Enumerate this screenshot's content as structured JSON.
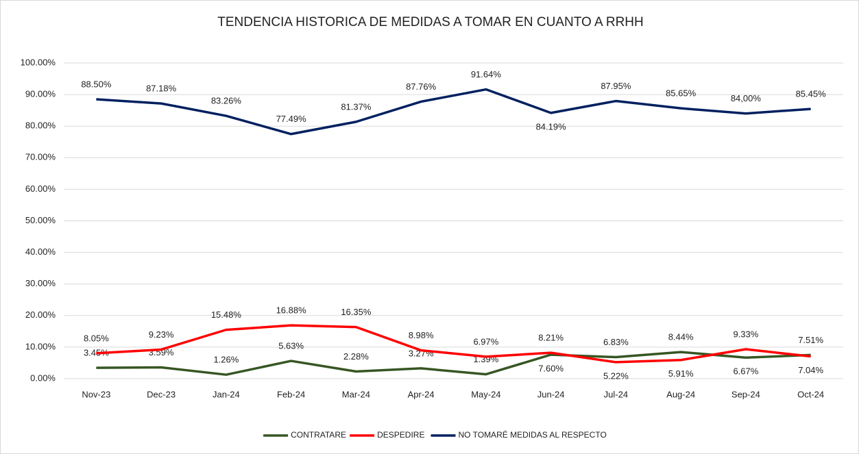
{
  "chart_data": {
    "type": "line",
    "title": "TENDENCIA HISTORICA DE MEDIDAS A TOMAR EN CUANTO A RRHH",
    "categories": [
      "Nov-23",
      "Dec-23",
      "Jan-24",
      "Feb-24",
      "Mar-24",
      "Apr-24",
      "May-24",
      "Jun-24",
      "Jul-24",
      "Aug-24",
      "Sep-24",
      "Oct-24"
    ],
    "series": [
      {
        "name": "CONTRATARE",
        "color": "#375623",
        "values": [
          3.45,
          3.59,
          1.26,
          5.63,
          2.28,
          3.27,
          1.39,
          7.6,
          6.83,
          8.44,
          6.67,
          7.51
        ],
        "value_labels": [
          "3.45%",
          "3.59%",
          "1.26%",
          "5.63%",
          "2.28%",
          "3.27%",
          "1.39%",
          "7.60%",
          "6.83%",
          "8.44%",
          "6.67%",
          "7.51%"
        ]
      },
      {
        "name": "DESPEDIRE",
        "color": "#ff0000",
        "values": [
          8.05,
          9.23,
          15.48,
          16.88,
          16.35,
          8.98,
          6.97,
          8.21,
          5.22,
          5.91,
          9.33,
          7.04
        ],
        "value_labels": [
          "8.05%",
          "9.23%",
          "15.48%",
          "16.88%",
          "16.35%",
          "8.98%",
          "6.97%",
          "8.21%",
          "5.22%",
          "5.91%",
          "9.33%",
          "7.04%"
        ]
      },
      {
        "name": "NO TOMARÉ MEDIDAS AL RESPECTO",
        "color": "#002060",
        "values": [
          88.5,
          87.18,
          83.26,
          77.49,
          81.37,
          87.76,
          91.64,
          84.19,
          87.95,
          85.65,
          84.0,
          85.45
        ],
        "value_labels": [
          "88.50%",
          "87.18%",
          "83.26%",
          "77.49%",
          "81.37%",
          "87.76%",
          "91.64%",
          "84.19%",
          "87.95%",
          "85.65%",
          "84,00%",
          "85.45%"
        ]
      }
    ],
    "ylim": [
      0,
      100
    ],
    "yticks": [
      {
        "value": 0,
        "label": "0.00%"
      },
      {
        "value": 10,
        "label": "10.00%"
      },
      {
        "value": 20,
        "label": "20.00%"
      },
      {
        "value": 30,
        "label": "30.00%"
      },
      {
        "value": 40,
        "label": "40.00%"
      },
      {
        "value": 50,
        "label": "50.00%"
      },
      {
        "value": 60,
        "label": "60.00%"
      },
      {
        "value": 70,
        "label": "70.00%"
      },
      {
        "value": 80,
        "label": "80.00%"
      },
      {
        "value": 90,
        "label": "90.00%"
      },
      {
        "value": 100,
        "label": "100.00%"
      }
    ],
    "grid": true,
    "legend": "bottom"
  }
}
